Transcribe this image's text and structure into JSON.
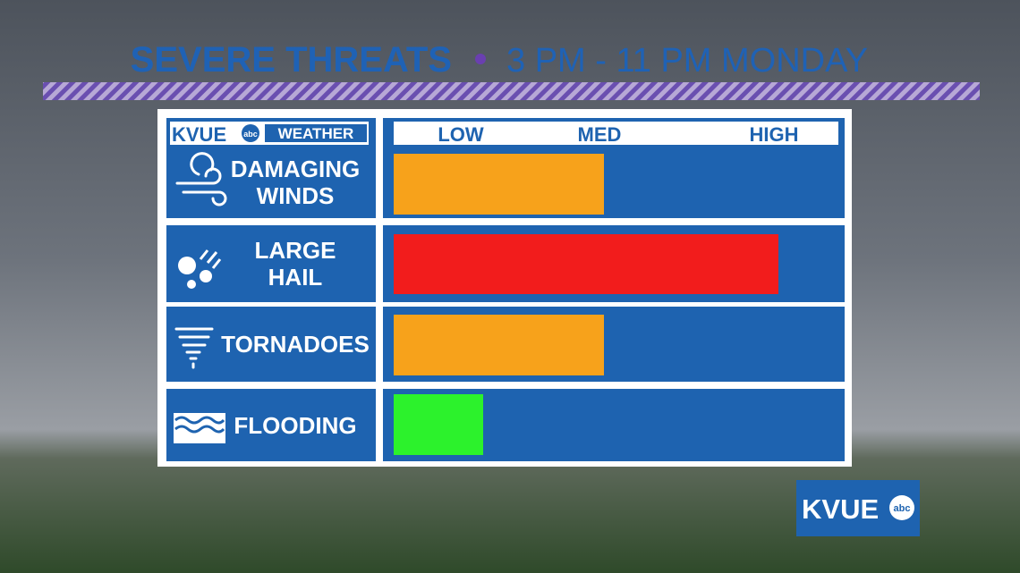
{
  "chart_data": {
    "type": "bar",
    "orientation": "horizontal",
    "title": "SEVERE THREATS",
    "subtitle": "3 PM - 11 PM MONDAY",
    "logo": {
      "brand": "KVUE",
      "network": "abc",
      "section": "WEATHER"
    },
    "categories": [
      "DAMAGING WINDS",
      "LARGE HAIL",
      "TORNADOES",
      "FLOODING"
    ],
    "values": [
      47,
      86,
      47,
      20
    ],
    "colors": [
      "#f7a21b",
      "#f21c1c",
      "#f7a21b",
      "#2cf22c"
    ],
    "xlim": [
      0,
      100
    ],
    "xticks": [
      {
        "value": 15,
        "label": "LOW"
      },
      {
        "value": 46,
        "label": "MED"
      },
      {
        "value": 85,
        "label": "HIGH"
      }
    ]
  }
}
